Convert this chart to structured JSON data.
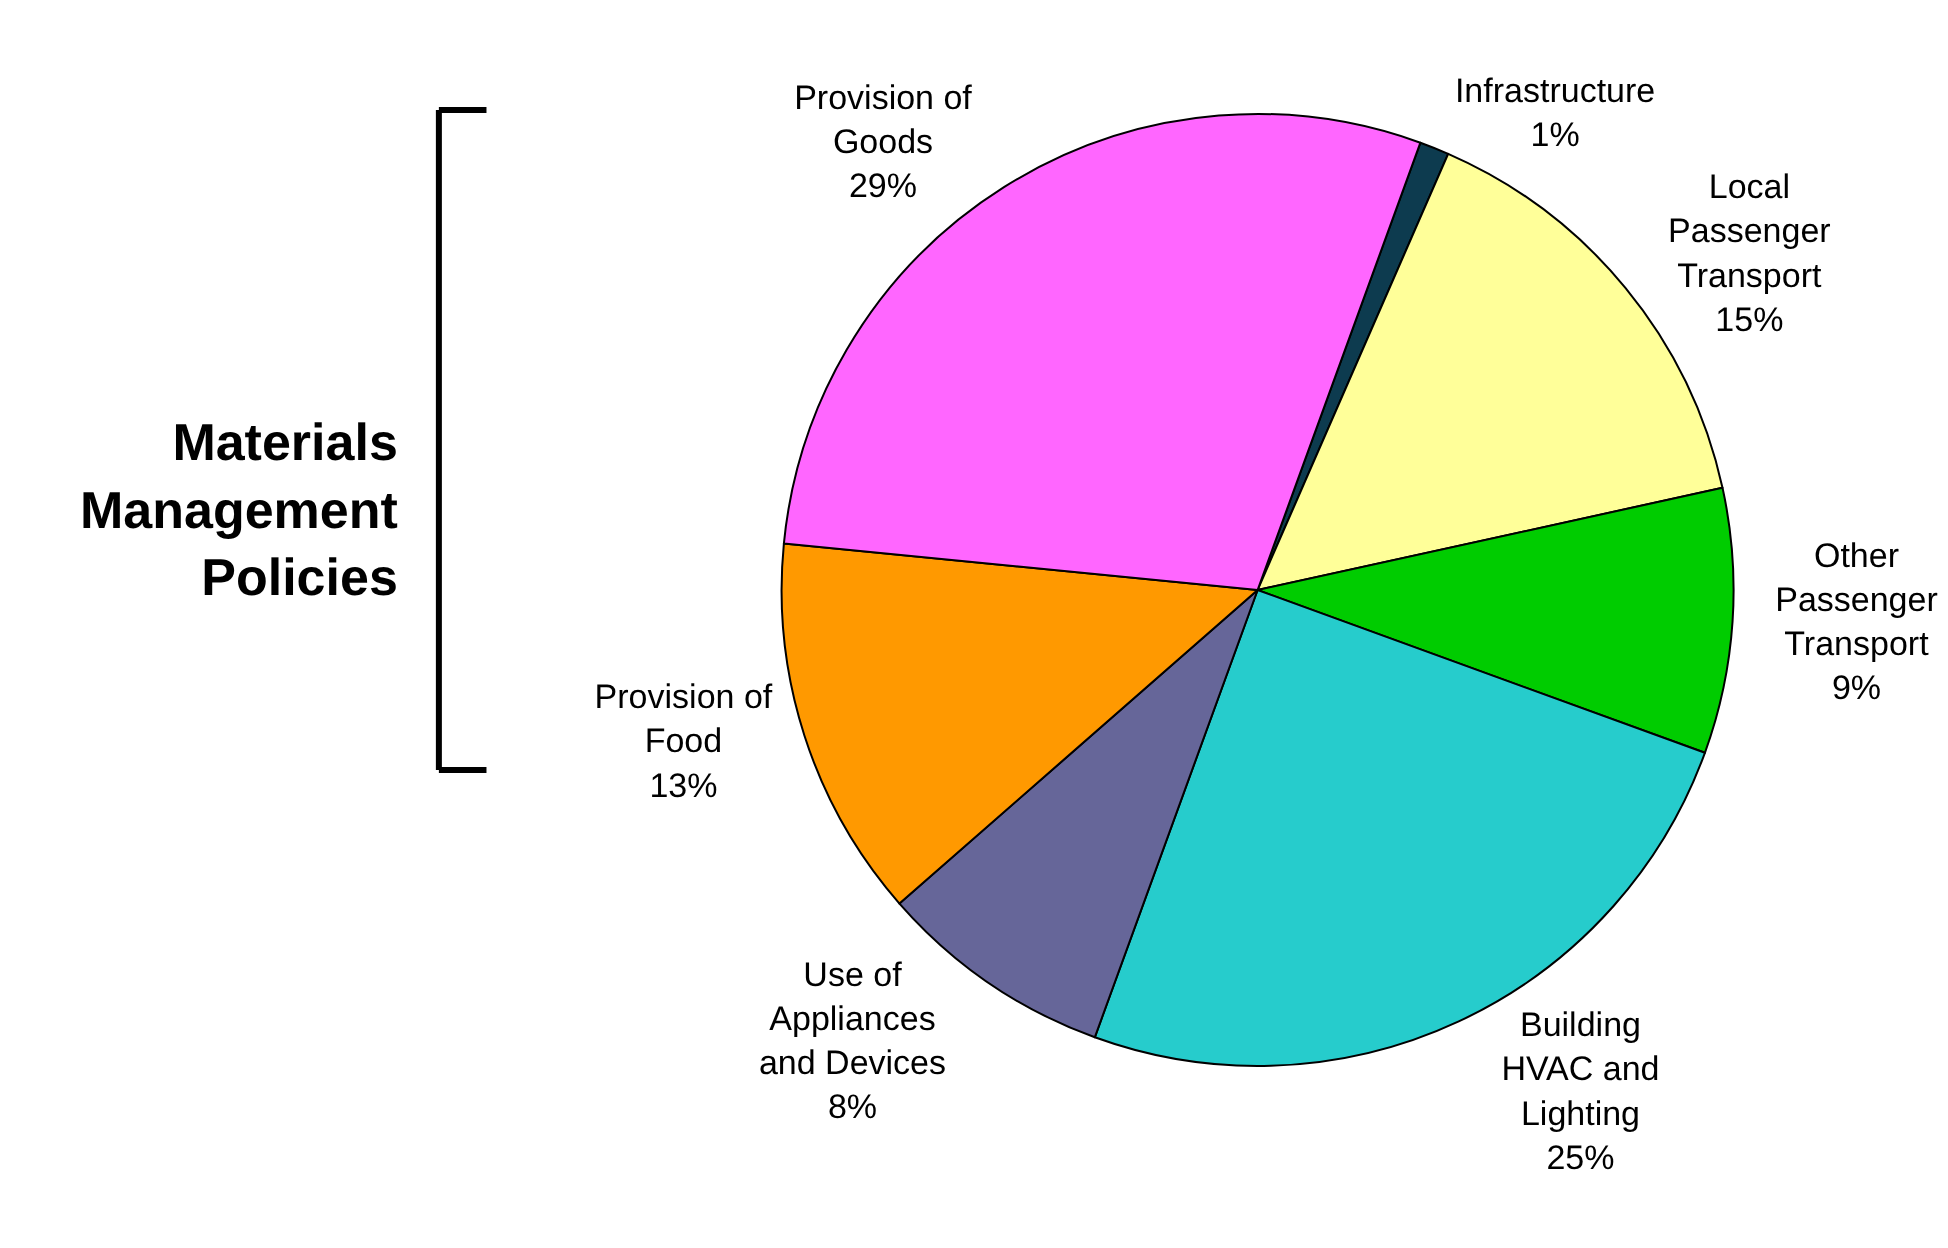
{
  "chart_data": {
    "type": "pie",
    "categories": [
      "Infrastructure",
      "Local Passenger Transport",
      "Other Passenger Transport",
      "Building HVAC and Lighting",
      "Use of Appliances and Devices",
      "Provision of Food",
      "Provision of Goods"
    ],
    "values": [
      1,
      15,
      9,
      25,
      8,
      13,
      29
    ],
    "colors": [
      "#0d3b4f",
      "#ffff99",
      "#00cc00",
      "#26cccc",
      "#666699",
      "#ff9900",
      "#ff66ff"
    ],
    "value_labels": [
      "1%",
      "15%",
      "9%",
      "25%",
      "8%",
      "13%",
      "29%"
    ],
    "annotations": [
      "Materials Management Policies"
    ],
    "legend": false
  }
}
